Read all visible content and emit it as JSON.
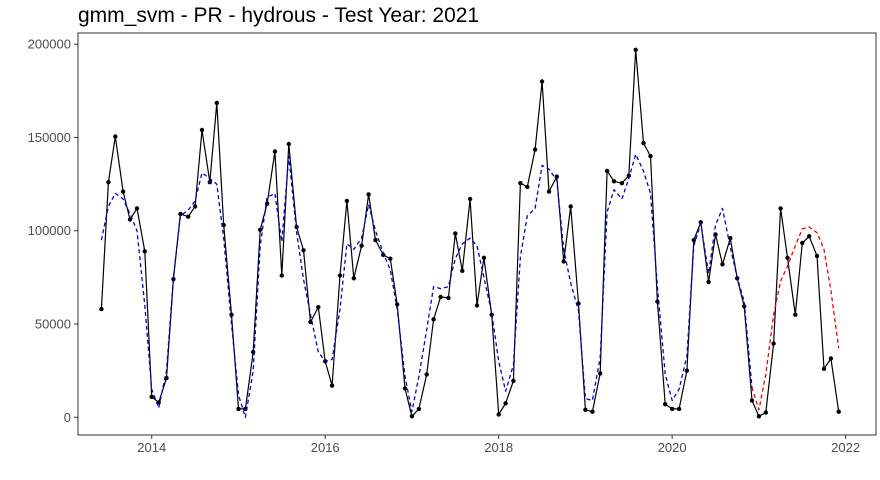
{
  "chart_data": {
    "type": "line",
    "title": "gmm_svm - PR - hydrous - Test Year: 2021",
    "xlabel": "",
    "ylabel": "",
    "xlim": [
      2013.15,
      2022.35
    ],
    "ylim": [
      -9500,
      206000
    ],
    "x_ticks": [
      2014,
      2016,
      2018,
      2020,
      2022
    ],
    "x_tick_labels": [
      "2014",
      "2016",
      "2018",
      "2020",
      "2022"
    ],
    "y_ticks": [
      0,
      50000,
      100000,
      150000,
      200000
    ],
    "y_tick_labels": [
      "0",
      "50000",
      "100000",
      "150000",
      "200000"
    ],
    "grid": false,
    "legend": "none",
    "series": [
      {
        "style": "solid-with-points",
        "color": "#000000",
        "points": [
          [
            2013.42,
            58000
          ],
          [
            2013.5,
            126000
          ],
          [
            2013.58,
            150500
          ],
          [
            2013.67,
            121000
          ],
          [
            2013.75,
            106000
          ],
          [
            2013.83,
            112000
          ],
          [
            2013.92,
            89000
          ],
          [
            2014.0,
            11000
          ],
          [
            2014.08,
            8000
          ],
          [
            2014.17,
            21000
          ],
          [
            2014.25,
            74000
          ],
          [
            2014.33,
            109000
          ],
          [
            2014.42,
            107500
          ],
          [
            2014.5,
            113000
          ],
          [
            2014.58,
            154000
          ],
          [
            2014.67,
            126000
          ],
          [
            2014.75,
            168500
          ],
          [
            2014.83,
            103000
          ],
          [
            2014.92,
            55000
          ],
          [
            2015.0,
            4500
          ],
          [
            2015.08,
            4500
          ],
          [
            2015.17,
            35000
          ],
          [
            2015.25,
            100500
          ],
          [
            2015.33,
            114500
          ],
          [
            2015.42,
            142500
          ],
          [
            2015.5,
            76000
          ],
          [
            2015.58,
            146500
          ],
          [
            2015.67,
            102000
          ],
          [
            2015.75,
            89500
          ],
          [
            2015.83,
            51000
          ],
          [
            2015.92,
            59000
          ],
          [
            2016.0,
            30000
          ],
          [
            2016.08,
            17000
          ],
          [
            2016.17,
            76000
          ],
          [
            2016.25,
            116000
          ],
          [
            2016.33,
            74500
          ],
          [
            2016.42,
            92000
          ],
          [
            2016.5,
            119500
          ],
          [
            2016.58,
            95000
          ],
          [
            2016.67,
            87000
          ],
          [
            2016.75,
            85000
          ],
          [
            2016.83,
            60500
          ],
          [
            2016.92,
            15500
          ],
          [
            2017.0,
            500
          ],
          [
            2017.08,
            4500
          ],
          [
            2017.17,
            23000
          ],
          [
            2017.25,
            52500
          ],
          [
            2017.33,
            64500
          ],
          [
            2017.42,
            64000
          ],
          [
            2017.5,
            98500
          ],
          [
            2017.58,
            78500
          ],
          [
            2017.67,
            117000
          ],
          [
            2017.75,
            60000
          ],
          [
            2017.83,
            85500
          ],
          [
            2017.92,
            55000
          ],
          [
            2018.0,
            1500
          ],
          [
            2018.08,
            7500
          ],
          [
            2018.17,
            19500
          ],
          [
            2018.25,
            125500
          ],
          [
            2018.33,
            123500
          ],
          [
            2018.42,
            143500
          ],
          [
            2018.5,
            180000
          ],
          [
            2018.58,
            121000
          ],
          [
            2018.67,
            129000
          ],
          [
            2018.75,
            83500
          ],
          [
            2018.83,
            113000
          ],
          [
            2018.92,
            61000
          ],
          [
            2019.0,
            4000
          ],
          [
            2019.08,
            3000
          ],
          [
            2019.17,
            23500
          ],
          [
            2019.25,
            132000
          ],
          [
            2019.33,
            126500
          ],
          [
            2019.42,
            125500
          ],
          [
            2019.5,
            129500
          ],
          [
            2019.58,
            197000
          ],
          [
            2019.67,
            147000
          ],
          [
            2019.75,
            140000
          ],
          [
            2019.83,
            62000
          ],
          [
            2019.92,
            7000
          ],
          [
            2020.0,
            4500
          ],
          [
            2020.08,
            4500
          ],
          [
            2020.17,
            25000
          ],
          [
            2020.25,
            95000
          ],
          [
            2020.33,
            104500
          ],
          [
            2020.42,
            72500
          ],
          [
            2020.5,
            98000
          ],
          [
            2020.58,
            82000
          ],
          [
            2020.67,
            96000
          ],
          [
            2020.75,
            74500
          ],
          [
            2020.83,
            59500
          ],
          [
            2020.92,
            9000
          ],
          [
            2021.0,
            500
          ],
          [
            2021.08,
            2500
          ],
          [
            2021.17,
            39500
          ],
          [
            2021.25,
            112000
          ],
          [
            2021.33,
            85500
          ],
          [
            2021.42,
            55000
          ],
          [
            2021.5,
            93500
          ],
          [
            2021.58,
            97000
          ],
          [
            2021.67,
            86500
          ],
          [
            2021.75,
            26000
          ],
          [
            2021.83,
            31500
          ],
          [
            2021.92,
            3000
          ]
        ]
      },
      {
        "style": "dashed",
        "color": "#0000cc",
        "points": [
          [
            2013.42,
            95000
          ],
          [
            2013.5,
            113000
          ],
          [
            2013.58,
            120000
          ],
          [
            2013.67,
            117000
          ],
          [
            2013.75,
            109000
          ],
          [
            2013.83,
            100000
          ],
          [
            2013.92,
            60000
          ],
          [
            2014.0,
            15000
          ],
          [
            2014.08,
            5000
          ],
          [
            2014.17,
            25000
          ],
          [
            2014.25,
            75000
          ],
          [
            2014.33,
            108000
          ],
          [
            2014.42,
            111000
          ],
          [
            2014.5,
            116000
          ],
          [
            2014.58,
            131000
          ],
          [
            2014.67,
            128000
          ],
          [
            2014.75,
            125000
          ],
          [
            2014.83,
            96000
          ],
          [
            2014.92,
            50000
          ],
          [
            2015.0,
            12000
          ],
          [
            2015.08,
            0
          ],
          [
            2015.17,
            25000
          ],
          [
            2015.25,
            92000
          ],
          [
            2015.33,
            118000
          ],
          [
            2015.42,
            120000
          ],
          [
            2015.5,
            94000
          ],
          [
            2015.58,
            140000
          ],
          [
            2015.67,
            99000
          ],
          [
            2015.75,
            74000
          ],
          [
            2015.83,
            55000
          ],
          [
            2015.92,
            35000
          ],
          [
            2016.0,
            30000
          ],
          [
            2016.08,
            31000
          ],
          [
            2016.17,
            58000
          ],
          [
            2016.25,
            93000
          ],
          [
            2016.33,
            90000
          ],
          [
            2016.42,
            96000
          ],
          [
            2016.5,
            114000
          ],
          [
            2016.58,
            100000
          ],
          [
            2016.67,
            88000
          ],
          [
            2016.75,
            79000
          ],
          [
            2016.83,
            58000
          ],
          [
            2016.92,
            22000
          ],
          [
            2017.0,
            3000
          ],
          [
            2017.08,
            22000
          ],
          [
            2017.17,
            47000
          ],
          [
            2017.25,
            70000
          ],
          [
            2017.33,
            69000
          ],
          [
            2017.42,
            70000
          ],
          [
            2017.5,
            85000
          ],
          [
            2017.58,
            93000
          ],
          [
            2017.67,
            96000
          ],
          [
            2017.75,
            92000
          ],
          [
            2017.83,
            75000
          ],
          [
            2017.92,
            56000
          ],
          [
            2018.0,
            30000
          ],
          [
            2018.08,
            14000
          ],
          [
            2018.17,
            28000
          ],
          [
            2018.25,
            86000
          ],
          [
            2018.33,
            108000
          ],
          [
            2018.42,
            112000
          ],
          [
            2018.5,
            135000
          ],
          [
            2018.58,
            133000
          ],
          [
            2018.67,
            127000
          ],
          [
            2018.75,
            90000
          ],
          [
            2018.83,
            72000
          ],
          [
            2018.92,
            57000
          ],
          [
            2019.0,
            10000
          ],
          [
            2019.08,
            9000
          ],
          [
            2019.17,
            32000
          ],
          [
            2019.25,
            110000
          ],
          [
            2019.33,
            122000
          ],
          [
            2019.42,
            117000
          ],
          [
            2019.5,
            128000
          ],
          [
            2019.58,
            141000
          ],
          [
            2019.67,
            132000
          ],
          [
            2019.75,
            120000
          ],
          [
            2019.83,
            70000
          ],
          [
            2019.92,
            23000
          ],
          [
            2020.0,
            9000
          ],
          [
            2020.08,
            15000
          ],
          [
            2020.17,
            33000
          ],
          [
            2020.25,
            92000
          ],
          [
            2020.33,
            104000
          ],
          [
            2020.42,
            77000
          ],
          [
            2020.5,
            103000
          ],
          [
            2020.58,
            112000
          ],
          [
            2020.67,
            91000
          ],
          [
            2020.75,
            75000
          ],
          [
            2020.83,
            62000
          ],
          [
            2020.92,
            16000
          ]
        ]
      },
      {
        "style": "dashed",
        "color": "#ee0000",
        "points": [
          [
            2020.92,
            16000
          ],
          [
            2021.0,
            4000
          ],
          [
            2021.08,
            23000
          ],
          [
            2021.17,
            55000
          ],
          [
            2021.25,
            73000
          ],
          [
            2021.33,
            81000
          ],
          [
            2021.42,
            92000
          ],
          [
            2021.5,
            101000
          ],
          [
            2021.58,
            102000
          ],
          [
            2021.67,
            99000
          ],
          [
            2021.75,
            90000
          ],
          [
            2021.83,
            68000
          ],
          [
            2021.92,
            37000
          ]
        ]
      }
    ]
  }
}
